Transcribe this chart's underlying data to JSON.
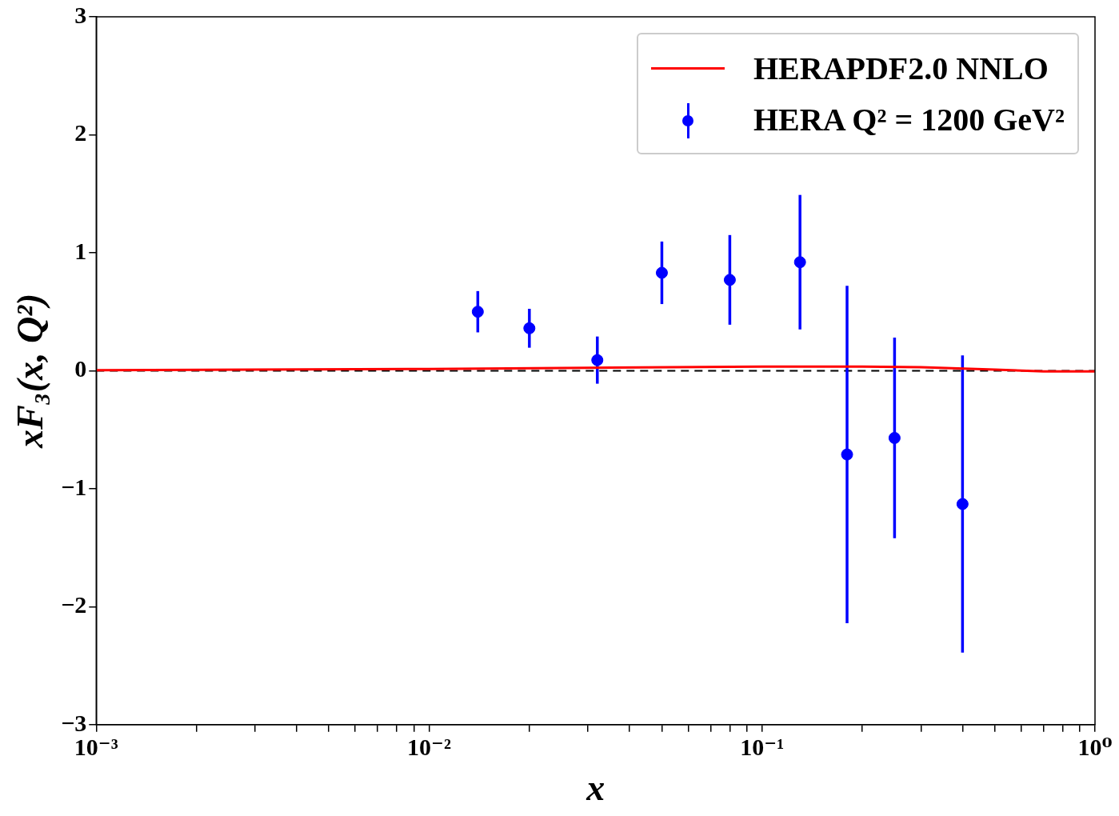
{
  "chart_data": {
    "type": "scatter",
    "xlabel": "x",
    "ylabel": "xF₃(x, Q²)",
    "log": "x",
    "grid": false,
    "legend": "top right",
    "xlim": [
      0.001,
      1
    ],
    "ylim": [
      -3,
      3
    ],
    "xticks": [
      {
        "value": 0.001,
        "label": "10⁻³"
      },
      {
        "value": 0.002,
        "label": null
      },
      {
        "value": 0.003,
        "label": null
      },
      {
        "value": 0.004,
        "label": null
      },
      {
        "value": 0.005,
        "label": null
      },
      {
        "value": 0.006,
        "label": null
      },
      {
        "value": 0.007,
        "label": null
      },
      {
        "value": 0.008,
        "label": null
      },
      {
        "value": 0.009,
        "label": null
      },
      {
        "value": 0.01,
        "label": "10⁻²"
      },
      {
        "value": 0.02,
        "label": null
      },
      {
        "value": 0.03,
        "label": null
      },
      {
        "value": 0.04,
        "label": null
      },
      {
        "value": 0.05,
        "label": null
      },
      {
        "value": 0.06,
        "label": null
      },
      {
        "value": 0.07,
        "label": null
      },
      {
        "value": 0.08,
        "label": null
      },
      {
        "value": 0.09,
        "label": null
      },
      {
        "value": 0.1,
        "label": "10⁻¹"
      },
      {
        "value": 0.2,
        "label": null
      },
      {
        "value": 0.3,
        "label": null
      },
      {
        "value": 0.4,
        "label": null
      },
      {
        "value": 0.5,
        "label": null
      },
      {
        "value": 0.6,
        "label": null
      },
      {
        "value": 0.7,
        "label": null
      },
      {
        "value": 0.8,
        "label": null
      },
      {
        "value": 0.9,
        "label": null
      },
      {
        "value": 1,
        "label": "10⁰"
      }
    ],
    "yticks": [
      {
        "value": -3,
        "label": "−3"
      },
      {
        "value": -2,
        "label": "−2"
      },
      {
        "value": -1,
        "label": "−1"
      },
      0,
      1,
      2,
      3
    ],
    "ref_lines": [
      {
        "axis": "y",
        "value": 0,
        "color": "#000000",
        "line_style": "dashed"
      }
    ],
    "series": [
      {
        "name": "HERAPDF2.0 NNLO",
        "type": "line",
        "color": "#ff0000",
        "marker": "none",
        "line_style": "solid",
        "x": [
          0.001,
          0.01,
          0.03,
          0.1,
          0.2,
          0.3,
          0.5,
          0.7,
          1
        ],
        "values": [
          0.005,
          0.015,
          0.025,
          0.035,
          0.035,
          0.03,
          0.01,
          -0.005,
          -0.005
        ]
      },
      {
        "name": "HERA Q² = 1200 GeV²",
        "type": "scatter",
        "color": "#0000ff",
        "marker": "circle",
        "x": [
          0.014,
          0.02,
          0.032,
          0.05,
          0.08,
          0.13,
          0.18,
          0.25,
          0.4
        ],
        "values": [
          0.5,
          0.36,
          0.09,
          0.83,
          0.77,
          0.92,
          -0.71,
          -0.57,
          -1.13
        ],
        "errors": [
          0.175,
          0.165,
          0.2,
          0.265,
          0.38,
          0.57,
          1.43,
          0.85,
          1.26
        ]
      }
    ]
  }
}
